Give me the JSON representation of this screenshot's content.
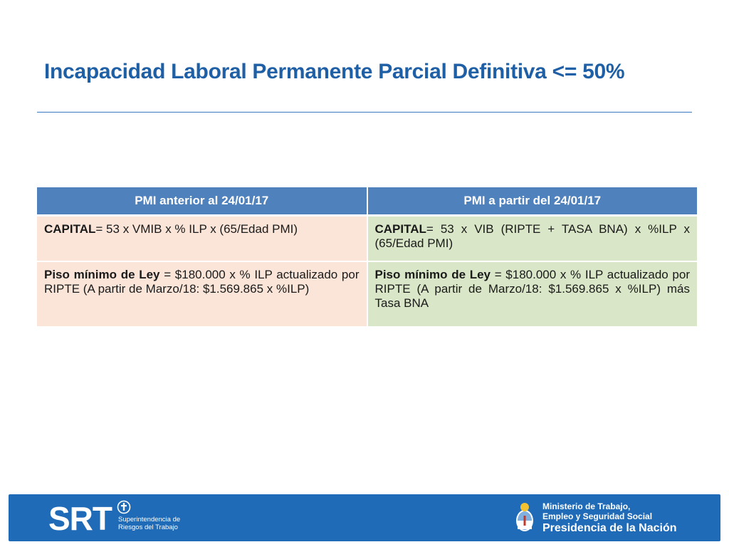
{
  "slide": {
    "title": "Incapacidad Laboral Permanente Parcial Definitiva <= 50%"
  },
  "table": {
    "headers": [
      "PMI anterior al 24/01/17",
      "PMI a partir del 24/01/17"
    ],
    "rows": [
      {
        "left": {
          "label": "CAPITAL",
          "text": "= 53 x VMIB x % ILP x (65/Edad PMI)"
        },
        "right": {
          "label": "CAPITAL",
          "text": "= 53 x VIB (RIPTE + TASA BNA) x %ILP x (65/Edad PMI)"
        }
      },
      {
        "left": {
          "label": "Piso mínimo de Ley",
          "text": " =  $180.000 x % ILP actualizado por RIPTE (A partir de Marzo/18: $1.569.865 x %ILP)"
        },
        "right": {
          "label": "Piso mínimo de Ley",
          "text": " = $180.000 x % ILP actualizado por RIPTE (A partir de Marzo/18: $1.569.865 x %ILP) más Tasa BNA"
        }
      }
    ]
  },
  "footer": {
    "srt_logo": "SRT",
    "srt_subtitle_1": "Superintendencia de",
    "srt_subtitle_2": "Riesgos del Trabajo",
    "ministry_line1": "Ministerio de Trabajo,",
    "ministry_line2": "Empleo y Seguridad Social",
    "ministry_line3": "Presidencia de la Nación"
  },
  "colors": {
    "title": "#1f5fa6",
    "header_bg": "#4f81bd",
    "left_cell_bg": "#fbe5d9",
    "right_cell_bg": "#d9e6c7",
    "footer_bg": "#1f6bb8"
  }
}
